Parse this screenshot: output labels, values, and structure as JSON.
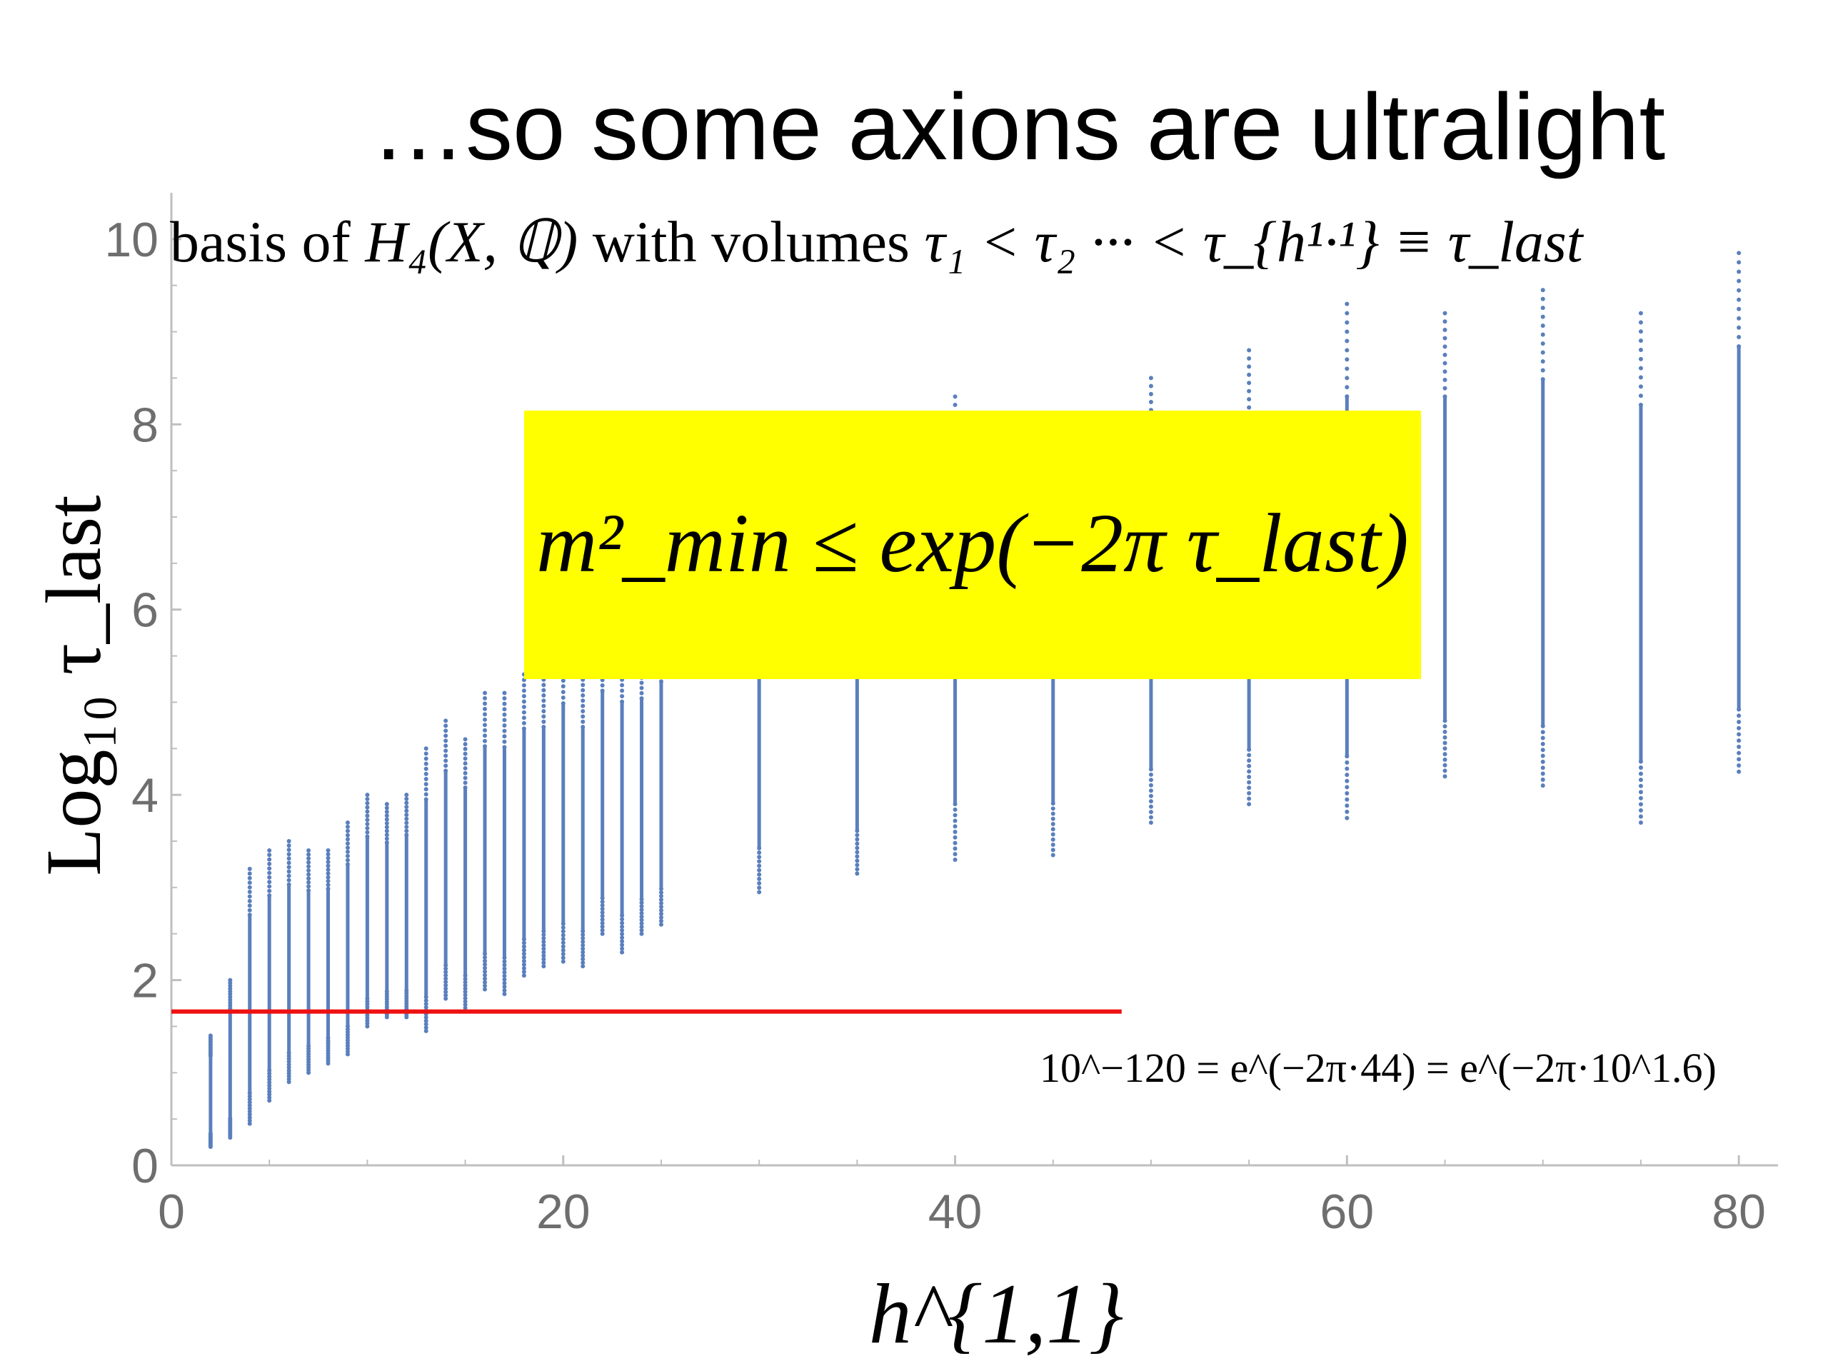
{
  "slide": {
    "title": "…so some axions are ultralight"
  },
  "colors": {
    "points": "#5a7fbd",
    "threshold_line": "#ee1111",
    "highlight_box": "#ffff00",
    "axis": "#bfbfbf",
    "tick_label": "#6e6e6e"
  },
  "annotations": {
    "basis": {
      "prefix": "basis of ",
      "math": "H₄(X, ℚ)",
      "middle": " with volumes ",
      "relation": "τ₁ < τ₂ ··· < τ_{h¹·¹} ≡ τ_last"
    },
    "bound_formula": "m²_min ≤ exp(−2π τ_last)",
    "threshold_formula": "10^−120 = e^(−2π·44) = e^(−2π·10^1.6)"
  },
  "chart_data": {
    "type": "scatter",
    "xlabel": "h^{1,1}",
    "ylabel": "Log₁₀ τ_last",
    "xlim": [
      0,
      82
    ],
    "ylim": [
      0,
      10.5
    ],
    "x_ticks": [
      "0",
      "20",
      "40",
      "60",
      "80"
    ],
    "y_ticks": [
      "0",
      "2",
      "4",
      "6",
      "8",
      "10"
    ],
    "threshold_y": 1.66,
    "threshold_x_range": [
      0,
      48.5
    ],
    "grid": false,
    "series": [
      {
        "columns": [
          {
            "x": 2,
            "min": 0.2,
            "max": 1.4
          },
          {
            "x": 3,
            "min": 0.3,
            "max": 2.0
          },
          {
            "x": 4,
            "min": 0.45,
            "max": 3.2
          },
          {
            "x": 5,
            "min": 0.7,
            "max": 3.4
          },
          {
            "x": 6,
            "min": 0.9,
            "max": 3.5
          },
          {
            "x": 7,
            "min": 1.0,
            "max": 3.4
          },
          {
            "x": 8,
            "min": 1.1,
            "max": 3.4
          },
          {
            "x": 9,
            "min": 1.2,
            "max": 3.7
          },
          {
            "x": 10,
            "min": 1.5,
            "max": 4.0
          },
          {
            "x": 11,
            "min": 1.6,
            "max": 3.9
          },
          {
            "x": 12,
            "min": 1.6,
            "max": 4.0
          },
          {
            "x": 13,
            "min": 1.45,
            "max": 4.5
          },
          {
            "x": 14,
            "min": 1.8,
            "max": 4.8
          },
          {
            "x": 15,
            "min": 1.7,
            "max": 4.6
          },
          {
            "x": 16,
            "min": 1.9,
            "max": 5.1
          },
          {
            "x": 17,
            "min": 1.85,
            "max": 5.1
          },
          {
            "x": 18,
            "min": 2.05,
            "max": 5.3
          },
          {
            "x": 19,
            "min": 2.15,
            "max": 5.3
          },
          {
            "x": 20,
            "min": 2.2,
            "max": 5.6
          },
          {
            "x": 21,
            "min": 2.15,
            "max": 5.3
          },
          {
            "x": 22,
            "min": 2.5,
            "max": 5.7
          },
          {
            "x": 23,
            "min": 2.3,
            "max": 5.6
          },
          {
            "x": 24,
            "min": 2.5,
            "max": 5.6
          },
          {
            "x": 25,
            "min": 2.6,
            "max": 5.8
          },
          {
            "x": 30,
            "min": 2.95,
            "max": 6.9
          },
          {
            "x": 35,
            "min": 3.15,
            "max": 7.0
          },
          {
            "x": 40,
            "min": 3.3,
            "max": 8.3
          },
          {
            "x": 45,
            "min": 3.35,
            "max": 8.0
          },
          {
            "x": 50,
            "min": 3.7,
            "max": 8.5
          },
          {
            "x": 55,
            "min": 3.9,
            "max": 8.8
          },
          {
            "x": 60,
            "min": 3.75,
            "max": 9.3
          },
          {
            "x": 65,
            "min": 4.2,
            "max": 9.2
          },
          {
            "x": 70,
            "min": 4.1,
            "max": 9.45
          },
          {
            "x": 75,
            "min": 3.7,
            "max": 9.2
          },
          {
            "x": 80,
            "min": 4.25,
            "max": 9.85
          }
        ]
      }
    ]
  }
}
